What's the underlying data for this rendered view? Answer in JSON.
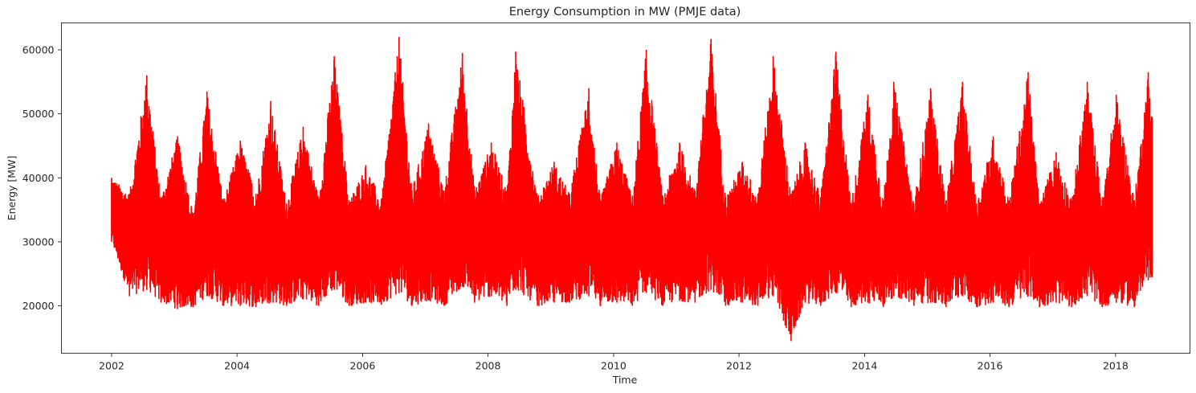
{
  "chart_data": {
    "type": "line",
    "title": "Energy Consumption in MW (PMJE data)",
    "xlabel": "Time",
    "ylabel": "Energy [MW]",
    "x_ticks": [
      "2002",
      "2004",
      "2006",
      "2008",
      "2010",
      "2012",
      "2014",
      "2016",
      "2018"
    ],
    "y_ticks": [
      "20000",
      "30000",
      "40000",
      "50000",
      "60000"
    ],
    "xlim": [
      "2001-03-15",
      "2019-03-10"
    ],
    "ylim": [
      12600,
      64200
    ],
    "grid": false,
    "legend": "none",
    "series": [
      {
        "color": "#ff0000",
        "points_per_year": 52,
        "seasonal_envelope": {
          "x": [
            "2002-01-01",
            "2002-04-15",
            "2002-07-25",
            "2002-10-15",
            "2003-01-20",
            "2003-04-20",
            "2003-07-10",
            "2003-10-15",
            "2004-01-20",
            "2004-04-20",
            "2004-07-15",
            "2004-10-15",
            "2005-01-20",
            "2005-04-20",
            "2005-07-20",
            "2005-10-15",
            "2006-01-20",
            "2006-04-20",
            "2006-08-01",
            "2006-10-15",
            "2007-01-20",
            "2007-04-20",
            "2007-08-05",
            "2007-10-15",
            "2008-01-20",
            "2008-04-20",
            "2008-06-10",
            "2008-10-15",
            "2009-01-20",
            "2009-04-20",
            "2009-08-10",
            "2009-10-15",
            "2010-01-20",
            "2010-04-20",
            "2010-07-10",
            "2010-10-15",
            "2011-01-20",
            "2011-04-20",
            "2011-07-22",
            "2011-10-15",
            "2012-01-20",
            "2012-04-20",
            "2012-07-18",
            "2012-10-30",
            "2013-01-20",
            "2013-04-20",
            "2013-07-18",
            "2013-10-15",
            "2014-01-20",
            "2014-04-20",
            "2014-06-20",
            "2014-10-15",
            "2015-01-20",
            "2015-04-20",
            "2015-07-25",
            "2015-10-15",
            "2016-01-20",
            "2016-04-20",
            "2016-08-10",
            "2016-10-15",
            "2017-01-20",
            "2017-04-20",
            "2017-07-20",
            "2017-10-15",
            "2018-01-05",
            "2018-04-20",
            "2018-07-10",
            "2018-08-02"
          ],
          "high": [
            40000,
            37500,
            56000,
            37000,
            46500,
            34500,
            53500,
            36500,
            45800,
            37500,
            52000,
            36000,
            48000,
            37000,
            59000,
            36500,
            42000,
            36500,
            62000,
            38000,
            48500,
            38000,
            59500,
            38000,
            45500,
            38000,
            59700,
            37000,
            42500,
            37500,
            54000,
            36500,
            45500,
            37000,
            60000,
            37000,
            45500,
            38000,
            61700,
            37000,
            42500,
            37500,
            59000,
            37500,
            45500,
            37000,
            59700,
            36000,
            53000,
            36500,
            55000,
            36000,
            54000,
            36500,
            55000,
            36000,
            46500,
            36500,
            56500,
            36000,
            44000,
            36500,
            55000,
            36500,
            53000,
            36500,
            56500,
            49500
          ],
          "low": [
            30000,
            21500,
            22500,
            20500,
            19500,
            19800,
            21500,
            20000,
            20000,
            19800,
            20500,
            20000,
            21000,
            20000,
            22500,
            20000,
            20500,
            20200,
            22000,
            20000,
            20800,
            20000,
            23000,
            20500,
            21500,
            20000,
            22500,
            20000,
            20500,
            20500,
            21500,
            20000,
            20500,
            20000,
            22000,
            20000,
            20800,
            20500,
            22500,
            20000,
            20500,
            20000,
            21500,
            14500,
            20500,
            20000,
            22000,
            19800,
            20500,
            19800,
            21500,
            20000,
            20500,
            19800,
            21500,
            19800,
            20500,
            19800,
            21500,
            19800,
            20500,
            19800,
            21500,
            19800,
            20500,
            19800,
            24000,
            24500
          ]
        }
      }
    ]
  }
}
